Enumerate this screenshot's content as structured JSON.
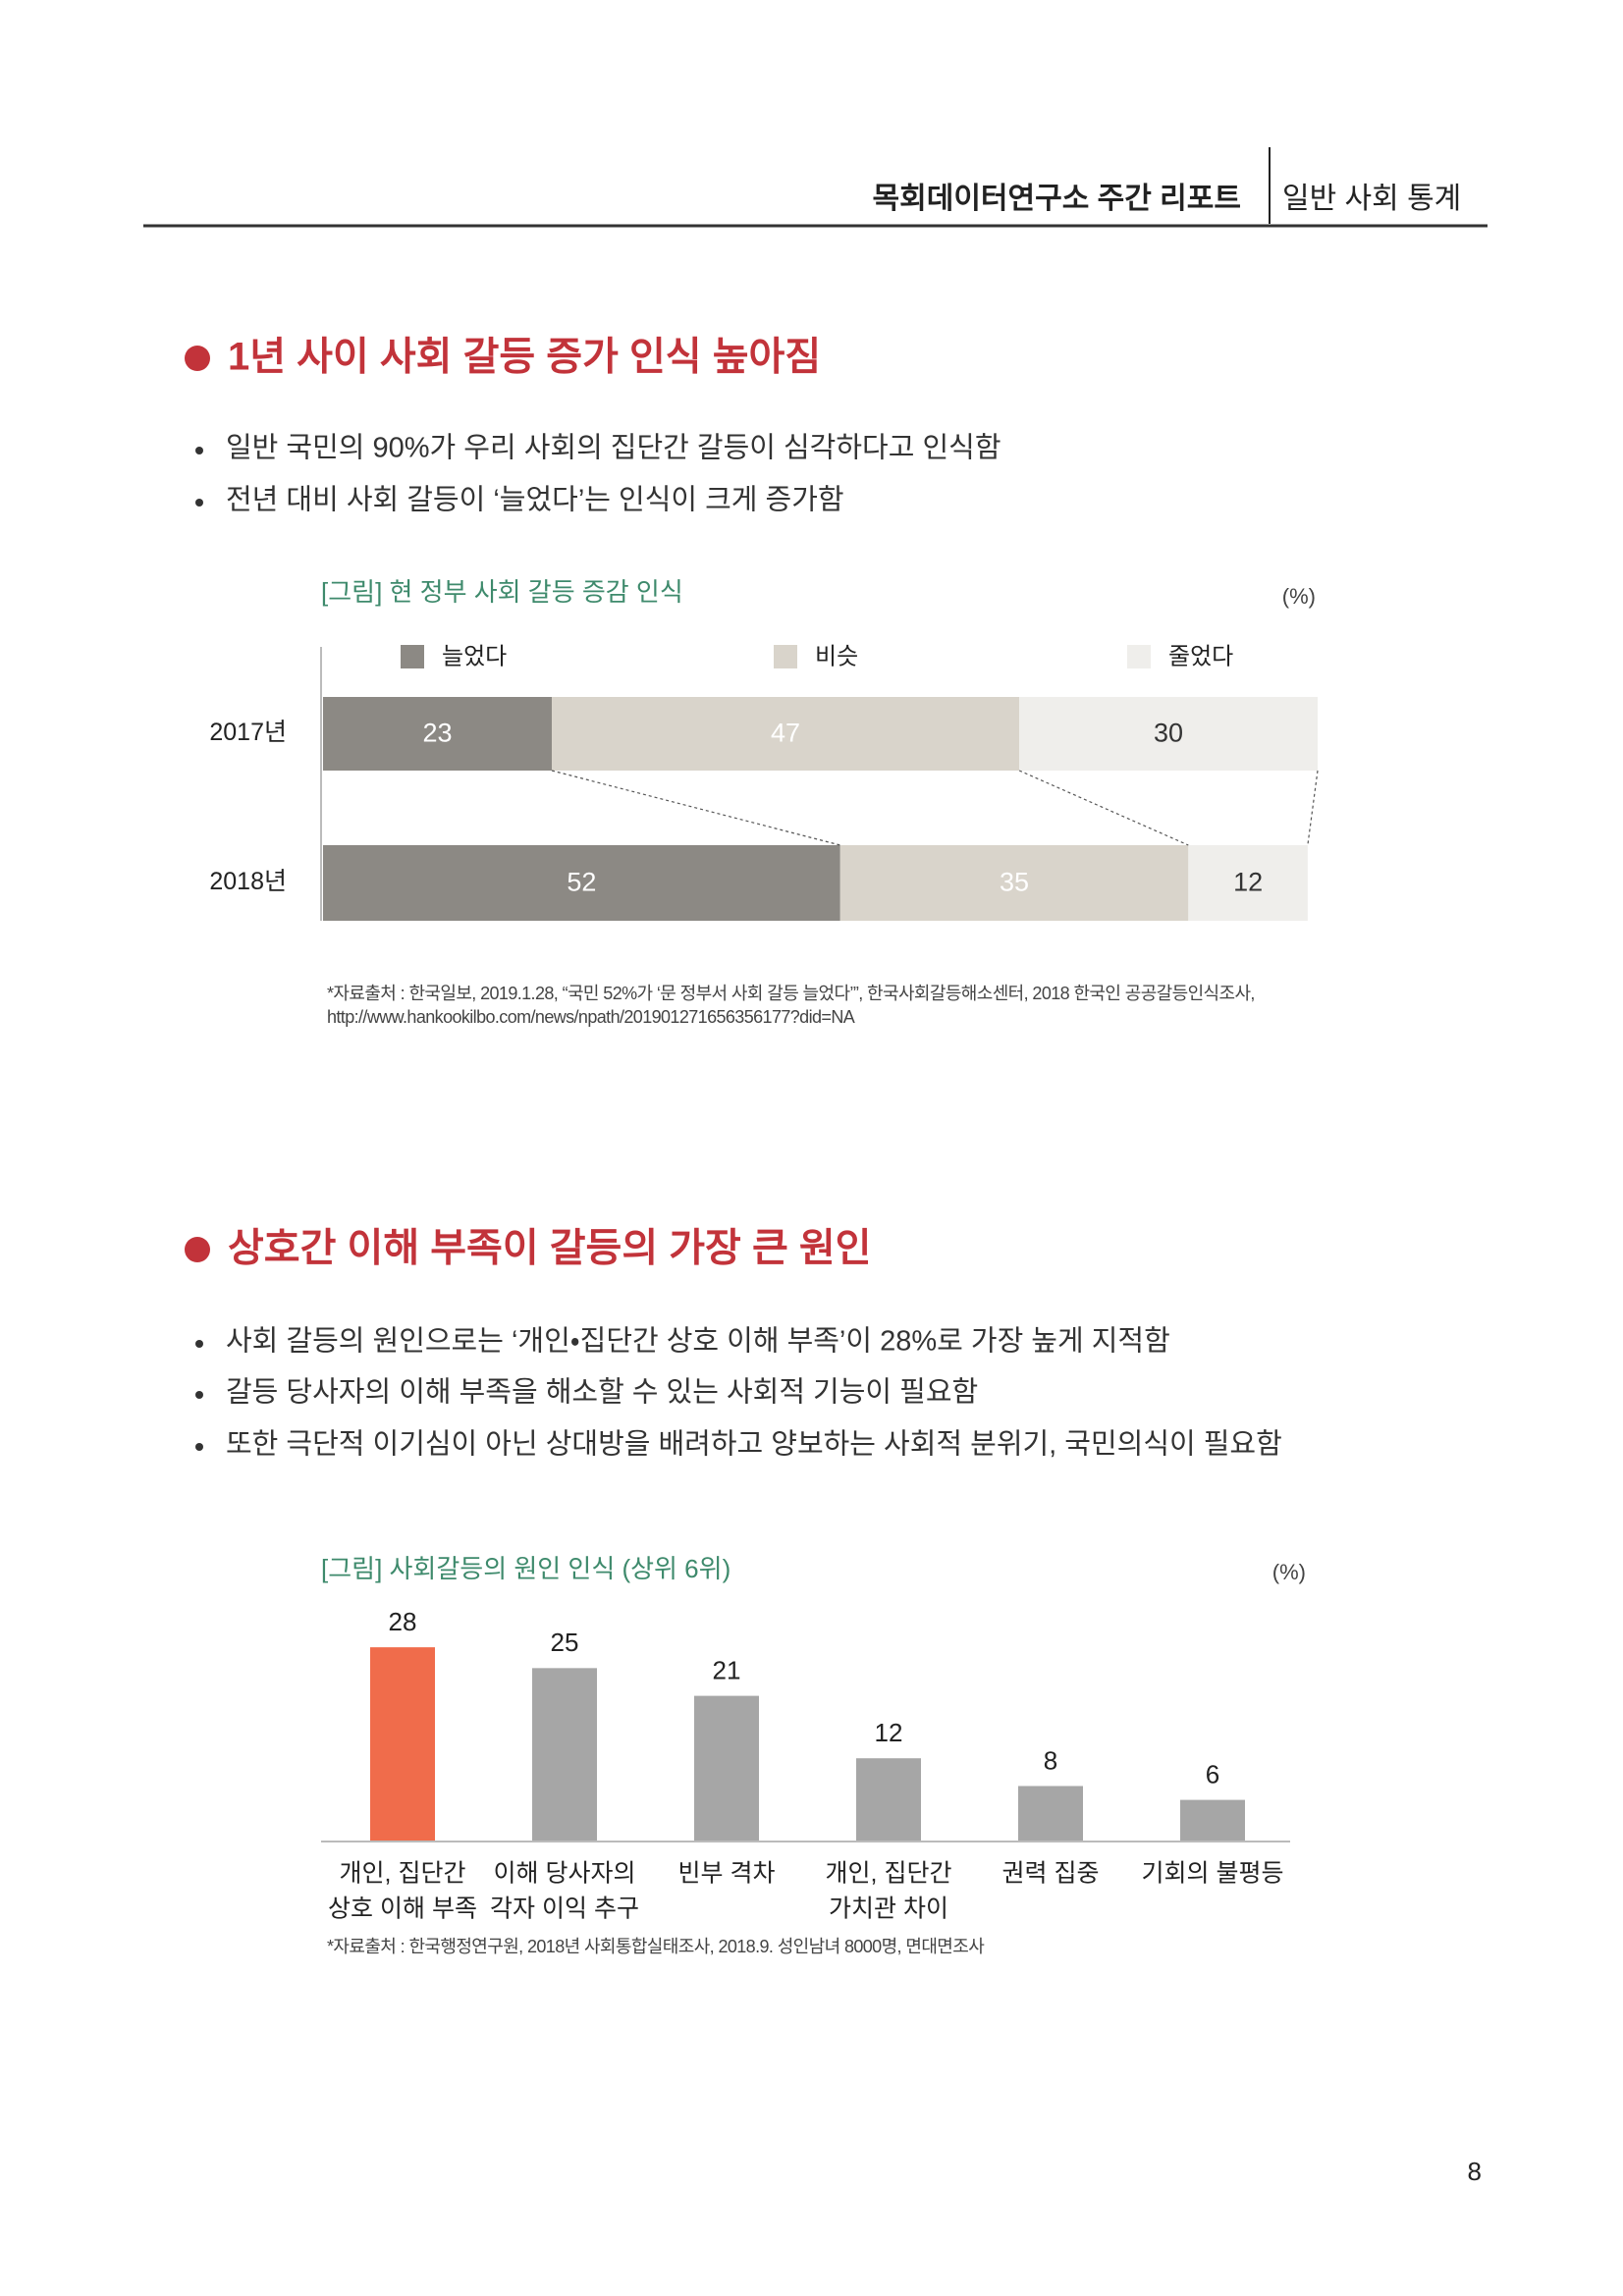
{
  "header": {
    "title": "목회데이터연구소 주간 리포트",
    "category": "일반 사회 통계"
  },
  "sections": [
    {
      "title": "1년 사이 사회 갈등 증가 인식 높아짐",
      "bullets": [
        "일반 국민의 90%가 우리 사회의 집단간 갈등이 심각하다고 인식함",
        "전년 대비 사회 갈등이 ‘늘었다’는 인식이 크게 증가함"
      ]
    },
    {
      "title": "상호간 이해 부족이 갈등의 가장 큰 원인",
      "bullets": [
        "사회 갈등의 원인으로는 ‘개인・집단간 상호 이해 부족’이 28%로 가장 높게 지적함",
        "갈등 당사자의 이해 부족을 해소할 수 있는 사회적 기능이 필요함",
        "또한 극단적 이기심이 아닌 상대방을 배려하고 양보하는 사회적 분위기, 국민의식이 필요함"
      ]
    }
  ],
  "chart_data": [
    {
      "type": "bar",
      "orientation": "horizontal",
      "stacked": true,
      "connectors": true,
      "title": "[그림] 현 정부 사회 갈등 증감 인식",
      "unit": "(%)",
      "categories": [
        "2017년",
        "2018년"
      ],
      "series": [
        {
          "name": "늘었다",
          "color": "#8c8984",
          "label_color": "#ffffff",
          "values": [
            23,
            52
          ]
        },
        {
          "name": "비슷",
          "color": "#d9d4cb",
          "label_color": "#ffffff",
          "values": [
            47,
            35
          ]
        },
        {
          "name": "줄었다",
          "color": "#efeeeb",
          "label_color": "#333333",
          "values": [
            30,
            12
          ]
        }
      ],
      "xlim": [
        0,
        100
      ],
      "source": [
        "*자료출처 : 한국일보, 2019.1.28, “국민 52%가 ‘문 정부서 사회 갈등 늘었다’”, 한국사회갈등해소센터, 2018 한국인 공공갈등인식조사,",
        "http://www.hankookilbo.com/news/npath/201901271656356177?did=NA"
      ]
    },
    {
      "type": "bar",
      "title": "[그림] 사회갈등의 원인 인식 (상위 6위)",
      "unit": "(%)",
      "categories": [
        [
          "개인, 집단간",
          "상호 이해 부족"
        ],
        [
          "이해 당사자의",
          "각자 이익 추구"
        ],
        [
          "빈부 격차"
        ],
        [
          "개인, 집단간",
          "가치관 차이"
        ],
        [
          "권력 집중"
        ],
        [
          "기회의 불평등"
        ]
      ],
      "values": [
        28,
        25,
        21,
        12,
        8,
        6
      ],
      "colors": [
        "#f06c4b",
        "#a6a6a6",
        "#a6a6a6",
        "#a6a6a6",
        "#a6a6a6",
        "#a6a6a6"
      ],
      "ylim": [
        0,
        30
      ],
      "source": [
        "*자료출처 : 한국행정연구원, 2018년 사회통합실태조사, 2018.9. 성인남녀 8000명, 면대면조사"
      ]
    }
  ],
  "page_number": 8
}
